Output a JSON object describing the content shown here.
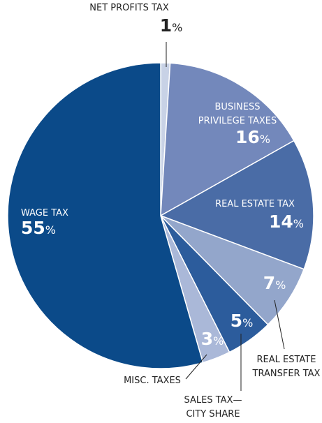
{
  "chart_data": {
    "type": "pie",
    "categories": [
      "NET PROFITS TAX",
      "BUSINESS\nPRIVILEGE TAXES",
      "REAL ESTATE TAX",
      "REAL ESTATE\nTRANSFER TAX",
      "SALES TAX—\nCITY SHARE",
      "MISC. TAXES",
      "WAGE TAX"
    ],
    "values": [
      1,
      16,
      14,
      7,
      5,
      3,
      55
    ],
    "value_labels": [
      "1%",
      "16%",
      "14%",
      "7%",
      "5%",
      "3%",
      "55%"
    ],
    "colors": [
      "#c8d2e6",
      "#7388bb",
      "#4a6ca6",
      "#93a6cb",
      "#2c5c9c",
      "#aab8d8",
      "#0b4a89"
    ]
  }
}
